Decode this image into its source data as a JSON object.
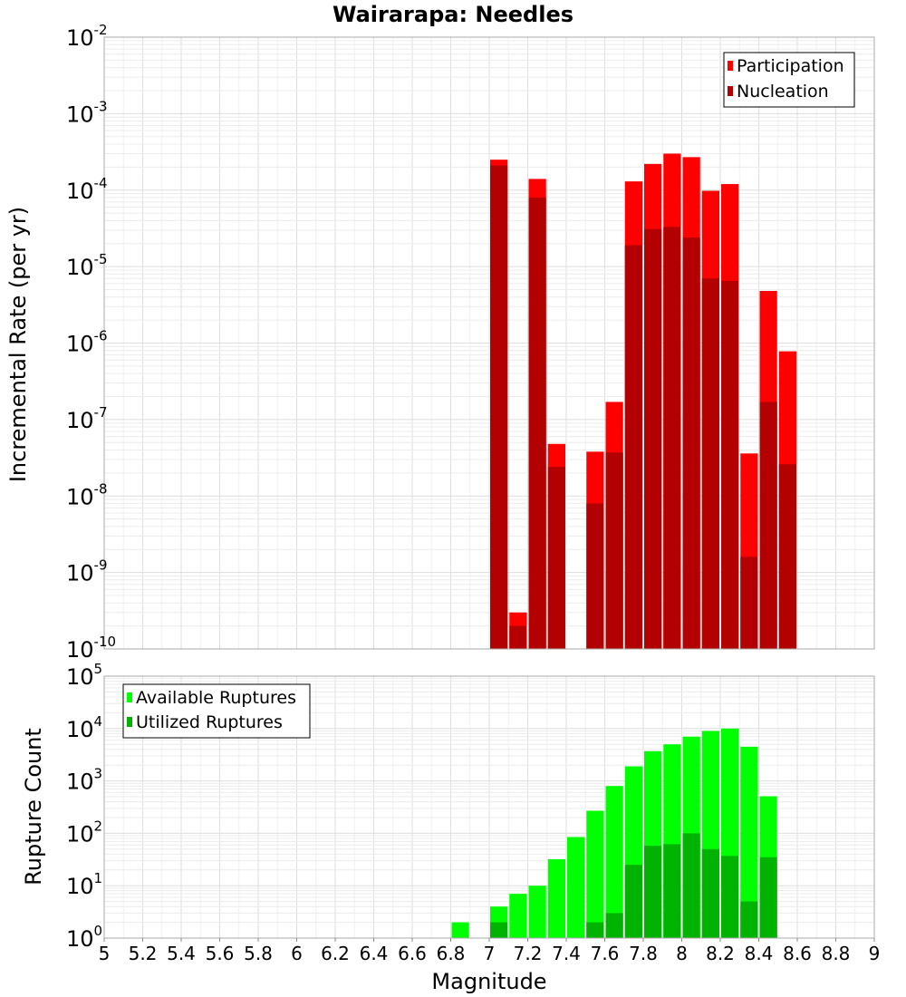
{
  "chart_data": [
    {
      "type": "bar",
      "title": "Wairarapa: Needles",
      "xlabel": "",
      "ylabel": "Incremental Rate (per yr)",
      "yscale": "log",
      "ylim_exp": [
        -10,
        -2
      ],
      "xlim": [
        5,
        9
      ],
      "grid": true,
      "legend_position": "top-right",
      "bin_width": 0.1,
      "x": [
        7.05,
        7.15,
        7.25,
        7.35,
        7.55,
        7.65,
        7.75,
        7.85,
        7.95,
        8.05,
        8.15,
        8.25,
        8.35,
        8.45,
        8.55
      ],
      "series": [
        {
          "name": "Participation",
          "color": "#ff0000",
          "values": [
            0.00025,
            3e-10,
            0.00014,
            4.8e-08,
            3.8e-08,
            1.7e-07,
            0.00013,
            0.00022,
            0.0003,
            0.00027,
            9.8e-05,
            0.00012,
            3.6e-08,
            4.8e-06,
            7.8e-07
          ]
        },
        {
          "name": "Nucleation",
          "color": "#b30000",
          "values": [
            0.00021,
            2e-10,
            8e-05,
            2.4e-08,
            8e-09,
            3.7e-08,
            1.9e-05,
            3.1e-05,
            3.3e-05,
            2.4e-05,
            7e-06,
            6.5e-06,
            1.6e-09,
            1.7e-07,
            2.6e-08
          ]
        }
      ]
    },
    {
      "type": "bar",
      "xlabel": "Magnitude",
      "ylabel": "Rupture Count",
      "yscale": "log",
      "ylim_exp": [
        0,
        5
      ],
      "xlim": [
        5,
        9
      ],
      "grid": true,
      "legend_position": "top-left",
      "bin_width": 0.1,
      "x": [
        6.85,
        6.95,
        7.05,
        7.15,
        7.25,
        7.35,
        7.45,
        7.55,
        7.65,
        7.75,
        7.85,
        7.95,
        8.05,
        8.15,
        8.25,
        8.35,
        8.45,
        8.55
      ],
      "series": [
        {
          "name": "Available Ruptures",
          "color": "#00ff00",
          "values": [
            2,
            1,
            4,
            7,
            10,
            32,
            85,
            270,
            800,
            1900,
            3700,
            5000,
            7000,
            9000,
            10000,
            4500,
            510,
            1
          ]
        },
        {
          "name": "Utilized Ruptures",
          "color": "#00b300",
          "values": [
            null,
            1,
            2,
            1,
            1,
            1,
            null,
            2,
            3,
            25,
            58,
            62,
            100,
            50,
            37,
            5,
            35,
            1
          ]
        }
      ]
    }
  ],
  "xticks": [
    "5",
    "5.2",
    "5.4",
    "5.6",
    "5.8",
    "6",
    "6.2",
    "6.4",
    "6.6",
    "6.8",
    "7",
    "7.2",
    "7.4",
    "7.6",
    "7.8",
    "8",
    "8.2",
    "8.4",
    "8.6",
    "8.8",
    "9"
  ]
}
